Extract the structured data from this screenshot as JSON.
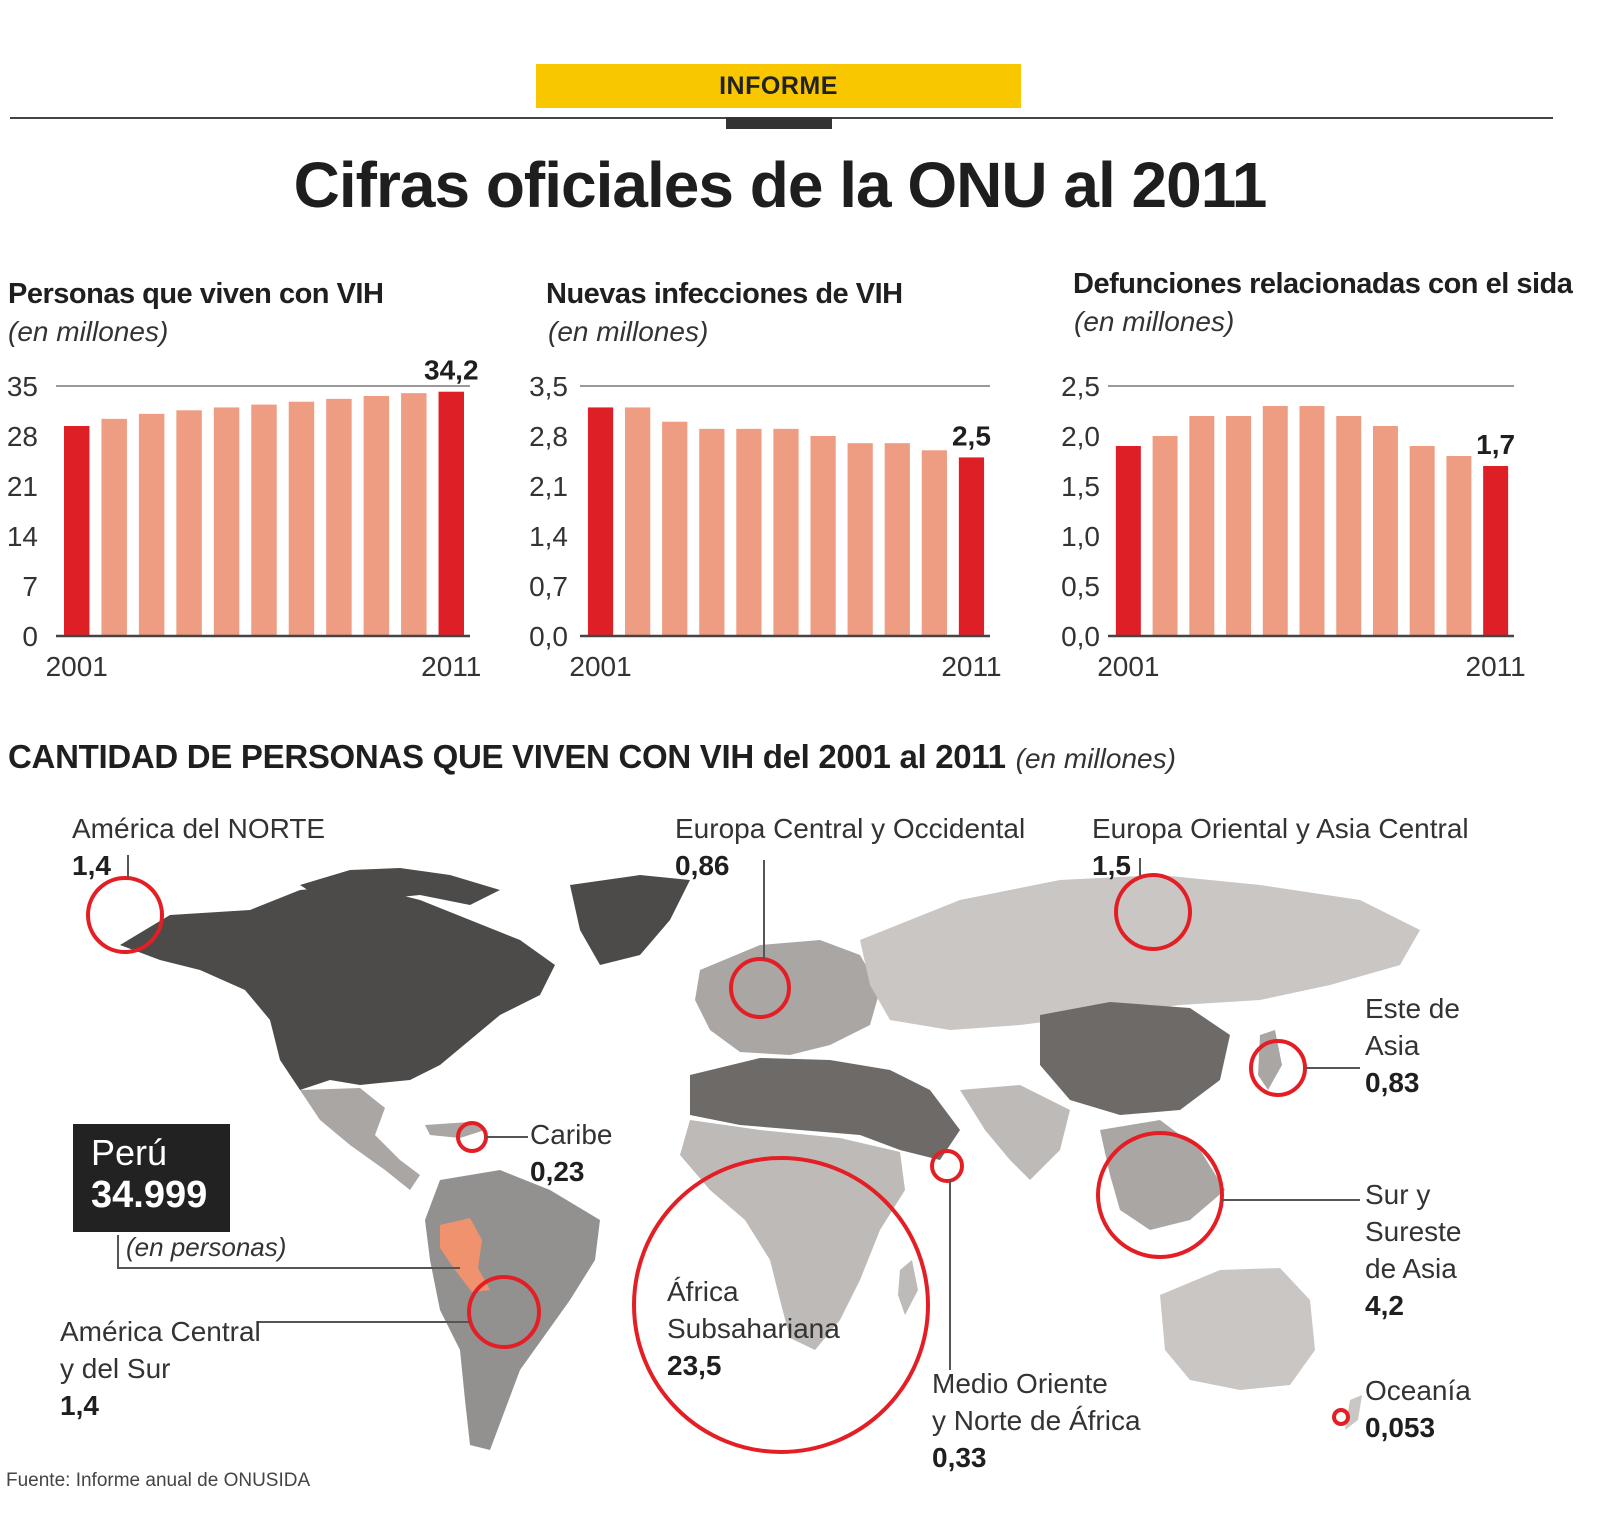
{
  "header": {
    "tag": "INFORME",
    "title": "Cifras oficiales de la ONU al 2011"
  },
  "colors": {
    "highlight_bar": "#de1f26",
    "regular_bar": "#ef9d82",
    "accent": "#f8c700",
    "circle": "#e31e24",
    "peru": "#f0926d"
  },
  "chart_data": [
    {
      "type": "bar",
      "title": "Personas que viven con VIH",
      "subtitle": "(en millones)",
      "categories": [
        "2001",
        "2002",
        "2003",
        "2004",
        "2005",
        "2006",
        "2007",
        "2008",
        "2009",
        "2010",
        "2011"
      ],
      "values": [
        29.4,
        30.4,
        31.1,
        31.6,
        32.0,
        32.4,
        32.8,
        33.2,
        33.6,
        34.0,
        34.2
      ],
      "highlight": [
        0,
        10
      ],
      "yticks": [
        "0",
        "7",
        "14",
        "21",
        "28",
        "35"
      ],
      "ylim": [
        0,
        35
      ],
      "xlabels": [
        "2001",
        "2011"
      ],
      "value_label": "34,2",
      "ref_line": 35
    },
    {
      "type": "bar",
      "title": "Nuevas infecciones de VIH",
      "subtitle": "(en millones)",
      "categories": [
        "2001",
        "2002",
        "2003",
        "2004",
        "2005",
        "2006",
        "2007",
        "2008",
        "2009",
        "2010",
        "2011"
      ],
      "values": [
        3.2,
        3.2,
        3.0,
        2.9,
        2.9,
        2.9,
        2.8,
        2.7,
        2.7,
        2.6,
        2.5
      ],
      "highlight": [
        0,
        10
      ],
      "yticks": [
        "0,0",
        "0,7",
        "1,4",
        "2,1",
        "2,8",
        "3,5"
      ],
      "ylim": [
        0,
        3.5
      ],
      "xlabels": [
        "2001",
        "2011"
      ],
      "value_label": "2,5",
      "ref_line": 3.5
    },
    {
      "type": "bar",
      "title": "Defunciones relacionadas con el sida",
      "subtitle": "(en millones)",
      "categories": [
        "2001",
        "2002",
        "2003",
        "2004",
        "2005",
        "2006",
        "2007",
        "2008",
        "2009",
        "2010",
        "2011"
      ],
      "values": [
        1.9,
        2.0,
        2.2,
        2.2,
        2.3,
        2.3,
        2.2,
        2.1,
        1.9,
        1.8,
        1.7
      ],
      "highlight": [
        0,
        10
      ],
      "yticks": [
        "0,0",
        "0,5",
        "1,0",
        "1,5",
        "2,0",
        "2,5"
      ],
      "ylim": [
        0,
        2.5
      ],
      "xlabels": [
        "2001",
        "2011"
      ],
      "value_label": "1,7",
      "ref_line": 2.5
    }
  ],
  "map": {
    "title": "CANTIDAD DE PERSONAS QUE VIVEN CON VIH del 2001 al 2011",
    "title_unit": "(en millones)",
    "regions": [
      {
        "name": "América del NORTE",
        "value": "1,4"
      },
      {
        "name": "Europa Central y Occidental",
        "value": "0,86"
      },
      {
        "name": "Europa Oriental y Asia Central",
        "value": "1,5"
      },
      {
        "name_lines": [
          "Este de",
          "Asia"
        ],
        "value": "0,83"
      },
      {
        "name": "Caribe",
        "value": "0,23"
      },
      {
        "name_lines": [
          "Sur y",
          "Sureste",
          "de Asia"
        ],
        "value": "4,2"
      },
      {
        "name_lines": [
          "América Central",
          "y del Sur"
        ],
        "value": "1,4"
      },
      {
        "name_lines": [
          "África",
          "Subsahariana"
        ],
        "value": "23,5"
      },
      {
        "name_lines": [
          "Medio Oriente",
          "y Norte de África"
        ],
        "value": "0,33"
      },
      {
        "name": "Oceanía",
        "value": "0,053"
      }
    ],
    "peru": {
      "name": "Perú",
      "count": "34.999",
      "unit": "(en personas)"
    }
  },
  "source": "Fuente:  Informe anual de ONUSIDA"
}
